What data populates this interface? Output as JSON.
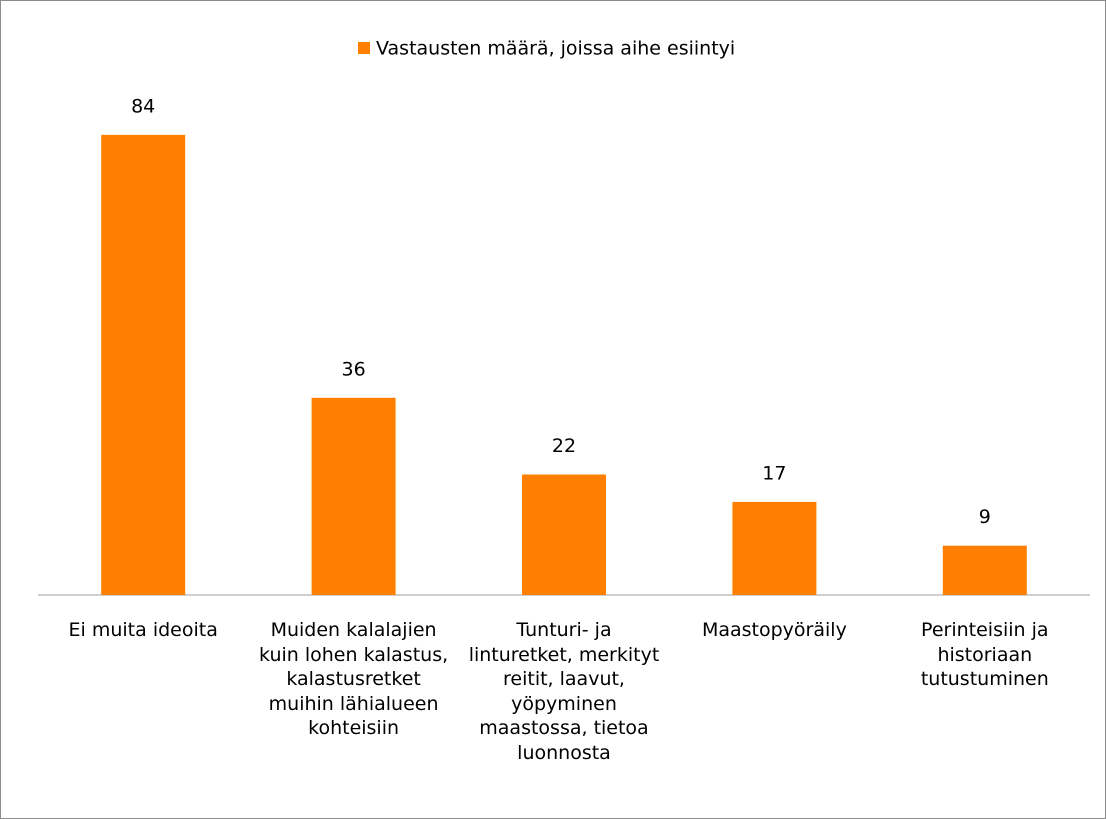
{
  "chart_data": {
    "type": "bar",
    "legend": "Vastausten määrä, joissa aihe esiintyi",
    "categories": [
      "Ei muita ideoita",
      "Muiden kalalajien kuin lohen kalastus, kalastusretket muihin lähialueen kohteisiin",
      "Tunturi- ja linturetket, merkityt reitit, laavut, yöpyminen maastossa, tietoa luonnosta",
      "Maastopyöräily",
      "Perinteisiin ja historiaan tutustuminen"
    ],
    "values": [
      84,
      36,
      22,
      17,
      9
    ],
    "color": "#ff8000",
    "ylim": [
      0,
      90
    ]
  }
}
